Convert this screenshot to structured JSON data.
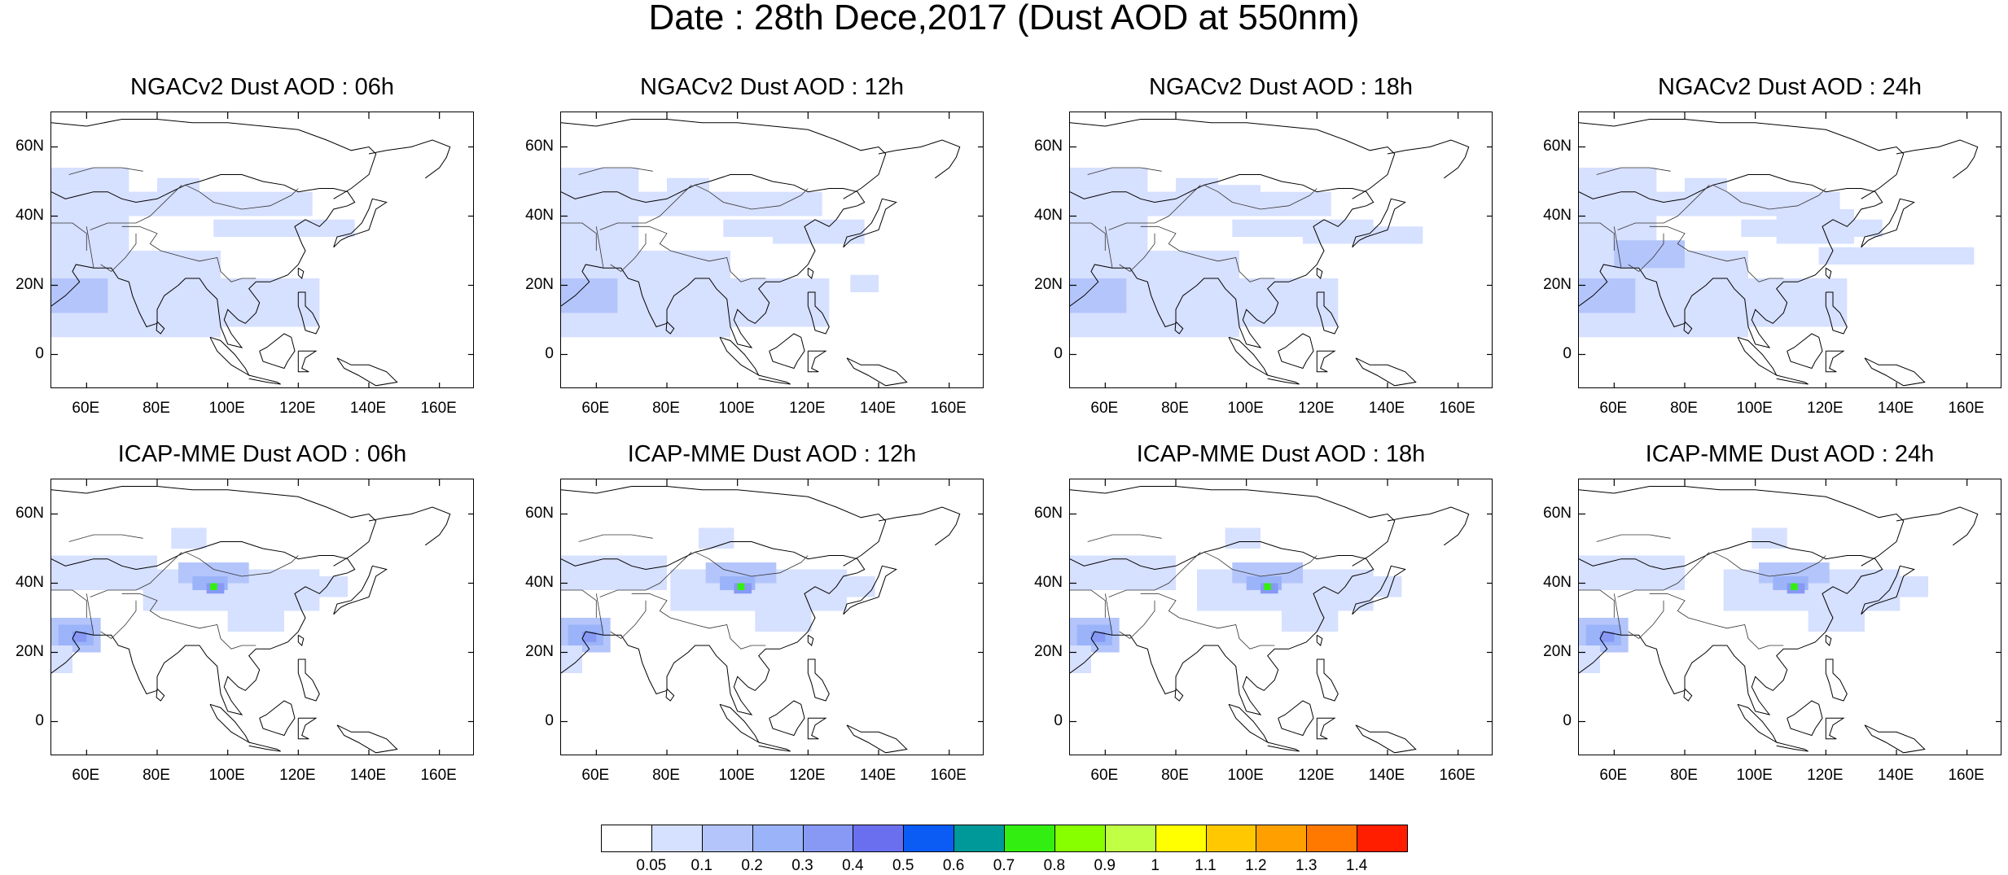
{
  "title": "Date : 28th Dece,2017 (Dust AOD at 550nm)",
  "panels": [
    {
      "title": "NGACv2 Dust AOD : 06h",
      "model": "NGACv2",
      "hour": "06h"
    },
    {
      "title": "NGACv2 Dust AOD : 12h",
      "model": "NGACv2",
      "hour": "12h"
    },
    {
      "title": "NGACv2 Dust AOD : 18h",
      "model": "NGACv2",
      "hour": "18h"
    },
    {
      "title": "NGACv2 Dust AOD : 24h",
      "model": "NGACv2",
      "hour": "24h"
    },
    {
      "title": "ICAP-MME Dust AOD : 06h",
      "model": "ICAP-MME",
      "hour": "06h"
    },
    {
      "title": "ICAP-MME Dust AOD : 12h",
      "model": "ICAP-MME",
      "hour": "12h"
    },
    {
      "title": "ICAP-MME Dust AOD : 18h",
      "model": "ICAP-MME",
      "hour": "18h"
    },
    {
      "title": "ICAP-MME Dust AOD : 24h",
      "model": "ICAP-MME",
      "hour": "24h"
    }
  ],
  "axes": {
    "lat_ticks": [
      "60N",
      "40N",
      "20N",
      "0"
    ],
    "lon_ticks": [
      "60E",
      "80E",
      "100E",
      "120E",
      "140E",
      "160E"
    ],
    "lat_values": [
      60,
      40,
      20,
      0
    ],
    "lon_values": [
      60,
      80,
      100,
      120,
      140,
      160
    ],
    "lon_range": [
      50,
      170
    ],
    "lat_range": [
      -10,
      70
    ]
  },
  "colorbar": {
    "labels": [
      "0.05",
      "0.1",
      "0.2",
      "0.3",
      "0.4",
      "0.5",
      "0.6",
      "0.7",
      "0.8",
      "0.9",
      "1",
      "1.1",
      "1.2",
      "1.3",
      "1.4"
    ],
    "colors": [
      "#ffffff",
      "#d6e0ff",
      "#b4c5fb",
      "#9bb4f9",
      "#8799f5",
      "#6a6ff0",
      "#0a5cf5",
      "#009999",
      "#33ee11",
      "#88ff00",
      "#c0ff44",
      "#ffff00",
      "#ffc800",
      "#ffa000",
      "#ff7800",
      "#ff1e00"
    ]
  }
}
